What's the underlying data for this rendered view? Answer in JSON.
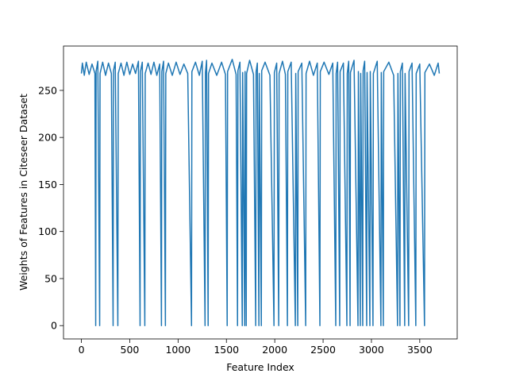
{
  "chart_data": {
    "type": "line",
    "xlabel": "Feature Index",
    "ylabel": "Weights of Features in Citeseer Dataset",
    "x": [
      0,
      10,
      30,
      50,
      80,
      110,
      140,
      148,
      152,
      170,
      189,
      193,
      220,
      250,
      280,
      310,
      328,
      332,
      350,
      377,
      381,
      410,
      440,
      470,
      500,
      530,
      560,
      590,
      607,
      611,
      630,
      656,
      660,
      690,
      720,
      750,
      780,
      810,
      828,
      832,
      850,
      869,
      873,
      900,
      940,
      980,
      1020,
      1060,
      1100,
      1139,
      1143,
      1180,
      1220,
      1250,
      1279,
      1283,
      1295,
      1311,
      1315,
      1350,
      1400,
      1450,
      1490,
      1508,
      1512,
      1560,
      1600,
      1615,
      1619,
      1640,
      1664,
      1668,
      1689,
      1693,
      1705,
      1709,
      1740,
      1780,
      1803,
      1807,
      1820,
      1836,
      1840,
      1861,
      1865,
      1900,
      1950,
      1992,
      1996,
      2020,
      2041,
      2045,
      2080,
      2110,
      2131,
      2135,
      2170,
      2213,
      2217,
      2238,
      2242,
      2280,
      2320,
      2324,
      2360,
      2400,
      2440,
      2467,
      2471,
      2510,
      2560,
      2600,
      2631,
      2635,
      2650,
      2672,
      2676,
      2710,
      2746,
      2750,
      2765,
      2779,
      2783,
      2820,
      2861,
      2865,
      2885,
      2889,
      2910,
      2914,
      2930,
      2951,
      2955,
      2984,
      2988,
      3016,
      3020,
      3060,
      3098,
      3102,
      3123,
      3127,
      3180,
      3230,
      3270,
      3274,
      3295,
      3299,
      3320,
      3344,
      3348,
      3385,
      3389,
      3420,
      3459,
      3463,
      3500,
      3549,
      3553,
      3600,
      3650,
      3690,
      3702
    ],
    "series": [
      {
        "color": "#1f77b4",
        "values": [
          268,
          279,
          266,
          280,
          267,
          278,
          268,
          0,
          270,
          281,
          0,
          268,
          280,
          266,
          279,
          268,
          0,
          271,
          280,
          0,
          268,
          279,
          266,
          280,
          267,
          278,
          268,
          281,
          0,
          270,
          280,
          0,
          268,
          279,
          267,
          280,
          266,
          278,
          0,
          270,
          281,
          0,
          268,
          279,
          266,
          280,
          267,
          278,
          268,
          0,
          270,
          280,
          266,
          281,
          0,
          269,
          282,
          0,
          268,
          279,
          266,
          280,
          267,
          0,
          270,
          283,
          267,
          0,
          271,
          280,
          0,
          269,
          0,
          270,
          0,
          268,
          282,
          267,
          0,
          270,
          279,
          0,
          268,
          0,
          271,
          280,
          266,
          0,
          269,
          279,
          0,
          268,
          281,
          267,
          0,
          270,
          280,
          0,
          268,
          0,
          270,
          279,
          0,
          268,
          281,
          266,
          279,
          0,
          270,
          280,
          267,
          279,
          0,
          268,
          280,
          0,
          270,
          279,
          0,
          268,
          281,
          0,
          269,
          282,
          0,
          270,
          0,
          268,
          0,
          271,
          281,
          0,
          269,
          0,
          270,
          0,
          268,
          281,
          0,
          269,
          0,
          270,
          280,
          266,
          0,
          268,
          0,
          270,
          279,
          0,
          268,
          0,
          270,
          279,
          0,
          268,
          278,
          0,
          269,
          278,
          266,
          279,
          268
        ]
      }
    ],
    "xlim": [
      -185.1,
      3887.1
    ],
    "ylim": [
      -14.15,
      297.15
    ],
    "xticks": [
      0,
      500,
      1000,
      1500,
      2000,
      2500,
      3000,
      3500
    ],
    "yticks": [
      0,
      50,
      100,
      150,
      200,
      250
    ]
  }
}
